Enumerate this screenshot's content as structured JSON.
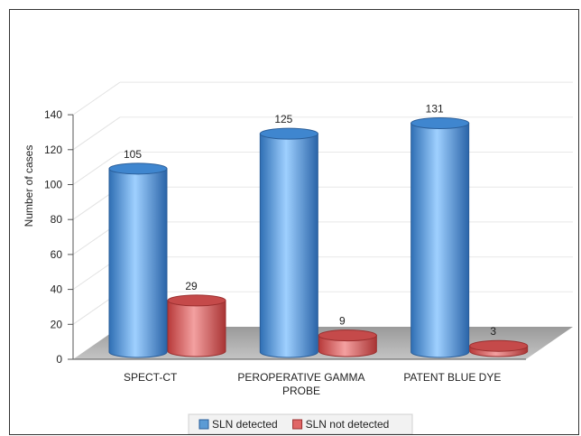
{
  "chart_data": {
    "type": "bar",
    "style": "3d-cylinder",
    "title": "",
    "xlabel": "",
    "ylabel": "Number of cases",
    "ylim": [
      0,
      140
    ],
    "yticks": [
      0,
      20,
      40,
      60,
      80,
      100,
      120,
      140
    ],
    "grid": true,
    "legend_position": "bottom",
    "categories": [
      "SPECT-CT",
      "PEROPERATIVE GAMMA PROBE",
      "PATENT BLUE DYE"
    ],
    "category_lines": [
      [
        "SPECT-CT"
      ],
      [
        "PEROPERATIVE GAMMA",
        "PROBE"
      ],
      [
        "PATENT BLUE DYE"
      ]
    ],
    "series": [
      {
        "name": "SLN detected",
        "values": [
          105,
          125,
          131
        ],
        "color": "#5b9bd5"
      },
      {
        "name": "SLN not detected",
        "values": [
          29,
          9,
          3
        ],
        "color": "#e06666"
      }
    ]
  }
}
